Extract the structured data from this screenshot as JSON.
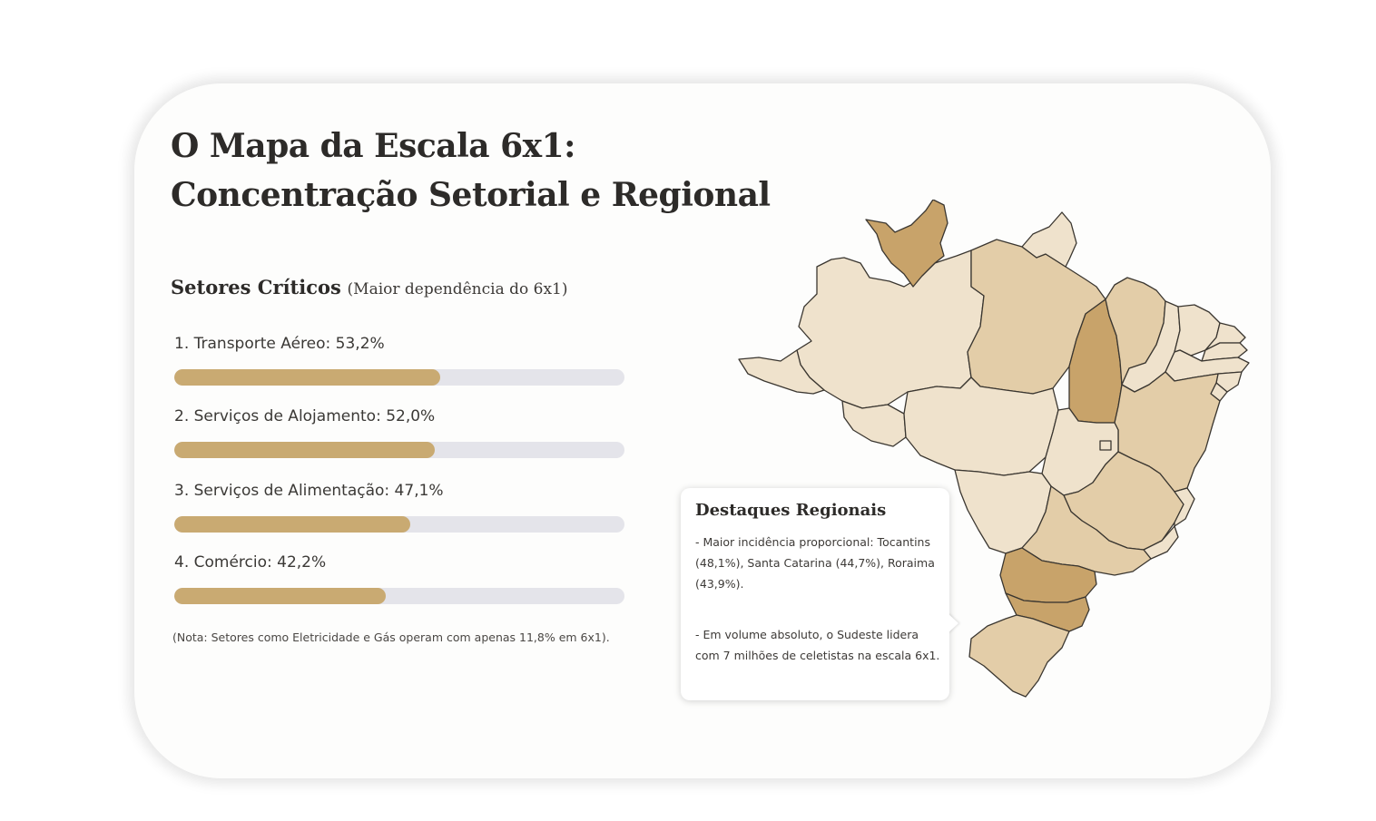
{
  "header": {
    "title_line1": "O Mapa da Escala 6x1:",
    "title_line2": "Concentração Setorial e Regional"
  },
  "sectors": {
    "heading": "Setores Críticos",
    "heading_note": "(Maior dependência do 6x1)"
  },
  "chart_data": {
    "type": "bar",
    "orientation": "horizontal",
    "categories": [
      "1. Transporte Aéreo: 53,2%",
      "2. Serviços de Alojamento: 52,0%",
      "3. Serviços de Alimentação: 47,1%",
      "4. Comércio: 42,2%"
    ],
    "values": [
      53.2,
      52.0,
      47.1,
      42.2
    ],
    "unit": "%",
    "xlim": [
      0,
      90
    ],
    "grid": false,
    "bar_color": "#c9aa72",
    "track_color": "#e4e4ea"
  },
  "note": "(Nota: Setores como Eletricidade e Gás operam com apenas 11,8% em 6x1).",
  "map": {
    "colors": {
      "highlight": "#c8a36a",
      "medium": "#e3cda8",
      "light": "#efe2cc",
      "border": "#3a3630"
    },
    "highlighted_states": [
      "Tocantins",
      "Santa Catarina",
      "Roraima"
    ]
  },
  "callout": {
    "title": "Destaques Regionais",
    "paragraph1": "- Maior incidência proporcional: Tocantins (48,1%), Santa Catarina (44,7%), Roraima (43,9%).",
    "paragraph2": "- Em volume absoluto, o Sudeste lidera com 7 milhões de celetistas na escala 6x1."
  }
}
